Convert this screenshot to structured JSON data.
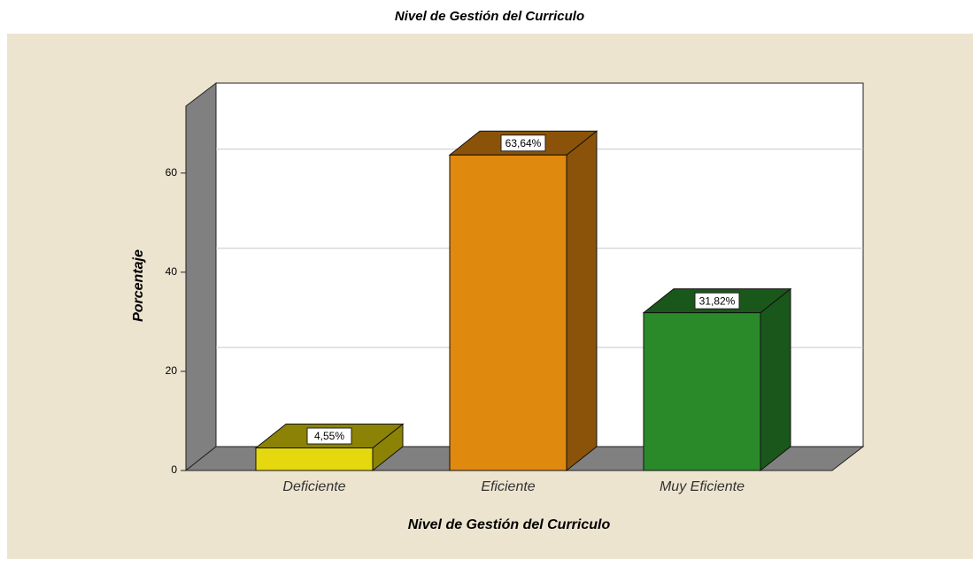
{
  "chart_data": {
    "type": "bar3d",
    "title": "Nivel de Gestión del Curriculo",
    "x_label": "Nivel de Gestión del Curriculo",
    "y_label": "Porcentaje",
    "categories": [
      "Deficiente",
      "Eficiente",
      "Muy Eficiente"
    ],
    "values": [
      4.55,
      63.64,
      31.82
    ],
    "value_labels": [
      "4,55%",
      "63,64%",
      "31,82%"
    ],
    "colors": [
      "#e6d80f",
      "#e0890f",
      "#2a8a2a"
    ],
    "side_colors": [
      "#8c8206",
      "#8b5309",
      "#1a571a"
    ],
    "ylim": [
      0,
      73.5
    ],
    "yticks": [
      0,
      20,
      40,
      60
    ],
    "grid": true
  }
}
